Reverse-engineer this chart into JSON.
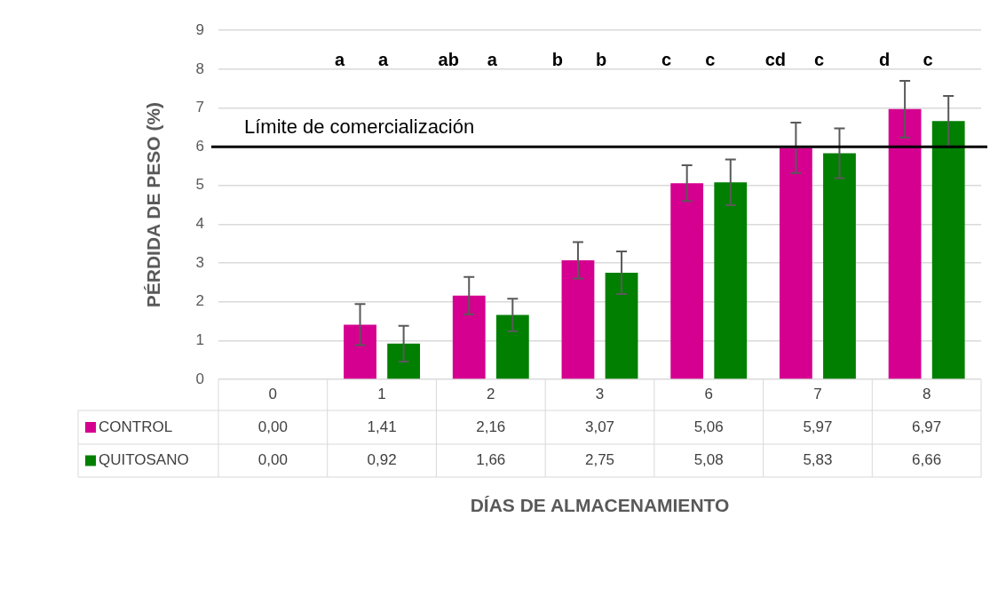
{
  "chart_data": {
    "type": "bar",
    "xlabel": "DÍAS DE ALMACENAMIENTO",
    "ylabel": "PÉRDIDA DE PESO (%)",
    "categories": [
      "0",
      "1",
      "2",
      "3",
      "6",
      "7",
      "8"
    ],
    "series": [
      {
        "name": "CONTROL",
        "color": "#d5008f",
        "values": [
          0.0,
          1.41,
          2.16,
          3.07,
          5.06,
          5.97,
          6.97
        ],
        "value_labels": [
          "0,00",
          "1,41",
          "2,16",
          "3,07",
          "5,06",
          "5,97",
          "6,97"
        ],
        "errors": [
          null,
          0.53,
          0.48,
          0.47,
          0.46,
          0.65,
          0.73
        ]
      },
      {
        "name": "QUITOSANO",
        "color": "#007f00",
        "values": [
          0.0,
          0.92,
          1.66,
          2.75,
          5.08,
          5.83,
          6.66
        ],
        "value_labels": [
          "0,00",
          "0,92",
          "1,66",
          "2,75",
          "5,08",
          "5,83",
          "6,66"
        ],
        "errors": [
          null,
          0.46,
          0.42,
          0.55,
          0.59,
          0.64,
          0.65
        ]
      }
    ],
    "ylim": [
      0,
      9
    ],
    "yticks": [
      0,
      1,
      2,
      3,
      4,
      5,
      6,
      7,
      8,
      9
    ],
    "grid": "y",
    "legend": "bottom",
    "ref_lines": [
      {
        "axis": "y",
        "value": 6,
        "label": "Límite de comercialización",
        "color": "#000000"
      }
    ],
    "annotations": [
      "a",
      "a",
      "ab",
      "a",
      "b",
      "b",
      "c",
      "c",
      "cd",
      "c",
      "d",
      "c"
    ]
  }
}
